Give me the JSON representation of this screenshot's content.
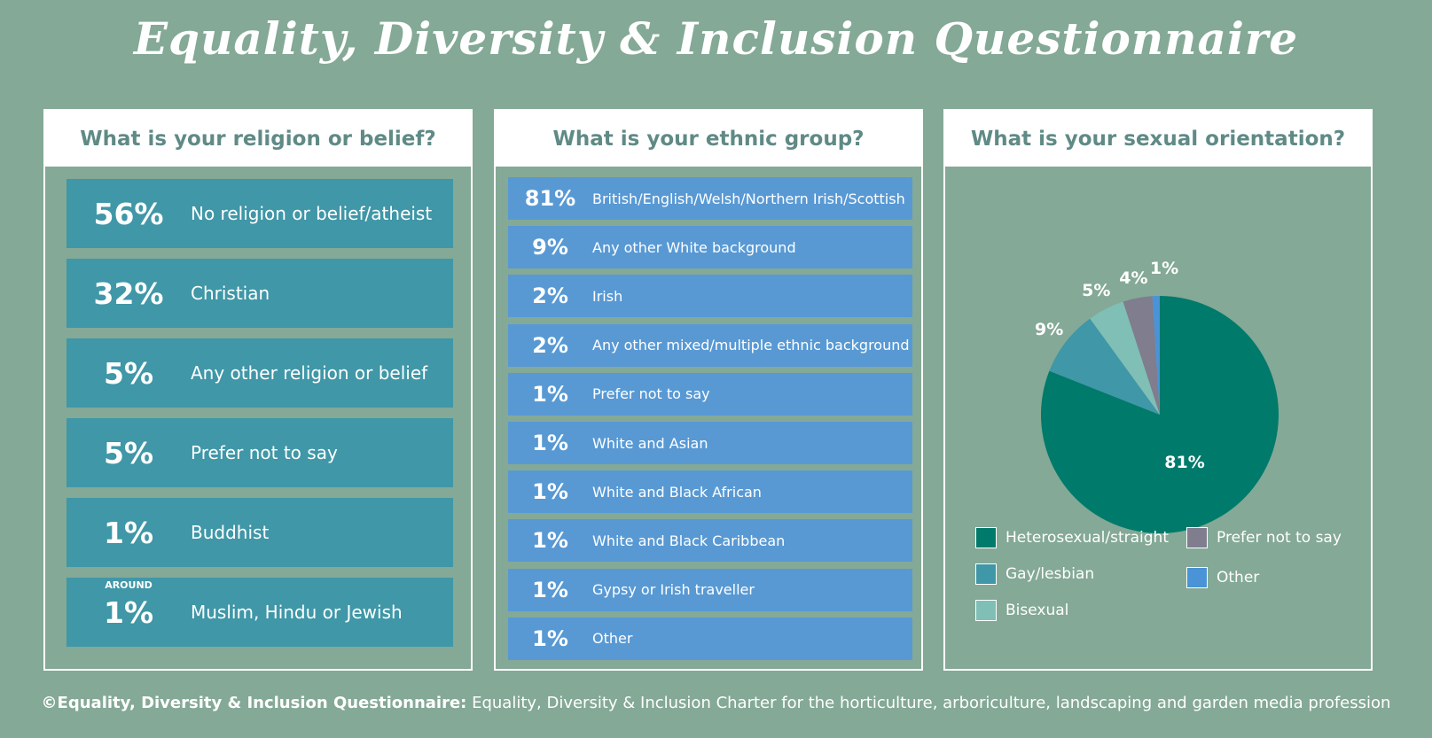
{
  "title": "Equality, Diversity & Inclusion Questionnaire",
  "religion": {
    "heading": "What is your religion or belief?",
    "items": [
      {
        "pct": "56%",
        "label": "No religion or belief/atheist",
        "prefix": ""
      },
      {
        "pct": "32%",
        "label": "Christian",
        "prefix": ""
      },
      {
        "pct": "5%",
        "label": "Any other religion or belief",
        "prefix": ""
      },
      {
        "pct": "5%",
        "label": "Prefer not to say",
        "prefix": ""
      },
      {
        "pct": "1%",
        "label": "Buddhist",
        "prefix": ""
      },
      {
        "pct": "1%",
        "label": "Muslim, Hindu or Jewish",
        "prefix": "AROUND"
      }
    ]
  },
  "ethnic": {
    "heading": "What is your ethnic group?",
    "items": [
      {
        "pct": "81%",
        "label": "British/English/Welsh/Northern Irish/Scottish"
      },
      {
        "pct": "9%",
        "label": "Any other White background"
      },
      {
        "pct": "2%",
        "label": "Irish"
      },
      {
        "pct": "2%",
        "label": "Any other mixed/multiple ethnic background"
      },
      {
        "pct": "1%",
        "label": "Prefer not to say"
      },
      {
        "pct": "1%",
        "label": "White and Asian"
      },
      {
        "pct": "1%",
        "label": "White and Black African"
      },
      {
        "pct": "1%",
        "label": "White and Black Caribbean"
      },
      {
        "pct": "1%",
        "label": "Gypsy or Irish traveller"
      },
      {
        "pct": "1%",
        "label": "Other"
      }
    ]
  },
  "orientation": {
    "heading": "What is your sexual orientation?"
  },
  "chart_data": {
    "type": "pie",
    "title": "What is your sexual orientation?",
    "slices": [
      {
        "label": "Heterosexual/straight",
        "value": 81,
        "display": "81%",
        "color": "#007a6b"
      },
      {
        "label": "Gay/lesbian",
        "value": 9,
        "display": "9%",
        "color": "#3f97a7"
      },
      {
        "label": "Bisexual",
        "value": 5,
        "display": "5%",
        "color": "#7fbfb5"
      },
      {
        "label": "Prefer not to say",
        "value": 4,
        "display": "4%",
        "color": "#7f7d8e"
      },
      {
        "label": "Other",
        "value": 1,
        "display": "1%",
        "color": "#4a93d6"
      }
    ],
    "legend_position": "bottom"
  },
  "footer": {
    "bold": "©Equality, Diversity & Inclusion Questionnaire:",
    "rest": " Equality, Diversity & Inclusion Charter for the horticulture, arboriculture, landscaping and garden media profession"
  }
}
